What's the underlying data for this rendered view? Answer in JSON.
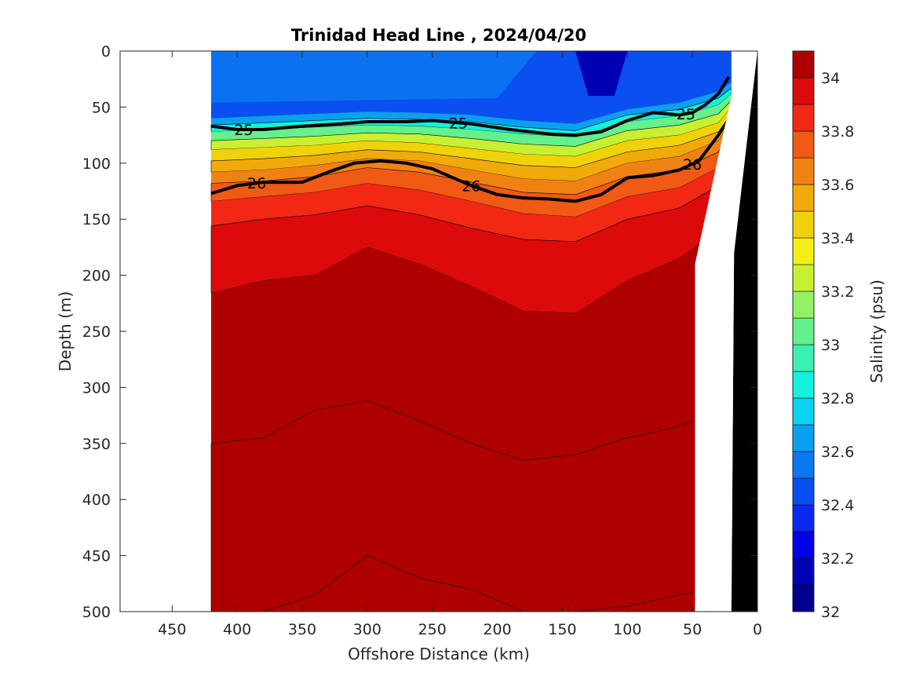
{
  "chart_data": {
    "type": "heatmap",
    "title": "Trinidad Head Line , 2024/04/20",
    "xlabel": "Offshore Distance (km)",
    "ylabel": "Depth (m)",
    "xlim": [
      490,
      0
    ],
    "ylim": [
      0,
      500
    ],
    "x_reversed": true,
    "y_reversed": true,
    "x_ticks": [
      450,
      400,
      350,
      300,
      250,
      200,
      150,
      100,
      50,
      0
    ],
    "y_ticks": [
      0,
      50,
      100,
      150,
      200,
      250,
      300,
      350,
      400,
      450,
      500
    ],
    "data_extent_km": [
      420,
      20
    ],
    "colorbar": {
      "label": "Salinity (psu)",
      "range": [
        32,
        34.1
      ],
      "ticks": [
        32,
        32.2,
        32.4,
        32.6,
        32.8,
        33,
        33.2,
        33.4,
        33.6,
        33.8,
        34
      ],
      "levels": [
        32.0,
        32.1,
        32.2,
        32.3,
        32.4,
        32.5,
        32.6,
        32.7,
        32.8,
        32.9,
        33.0,
        33.1,
        33.2,
        33.3,
        33.4,
        33.5,
        33.6,
        33.7,
        33.8,
        33.9,
        34.0
      ],
      "colors": [
        "#00008c",
        "#0000b4",
        "#0000e6",
        "#0a28f0",
        "#0a50f0",
        "#0a78f0",
        "#0aa0f0",
        "#0ad2f0",
        "#14f0dc",
        "#3cf0b4",
        "#64f08c",
        "#96f064",
        "#c8f032",
        "#f0f014",
        "#f0d20a",
        "#f0aa0a",
        "#f08214",
        "#f05a14",
        "#f02814",
        "#dc0a0a",
        "#af0000"
      ]
    },
    "salinity_bands": [
      {
        "name": "surface",
        "x": [
          420,
          380,
          340,
          300,
          260,
          220,
          180,
          140,
          100,
          60,
          30,
          20
        ],
        "depth": [
          60,
          58,
          56,
          54,
          55,
          57,
          62,
          65,
          52,
          46,
          36,
          28
        ],
        "value": 32.4
      },
      {
        "band": 1,
        "value": 32.6,
        "depth": [
          66,
          64,
          62,
          60,
          61,
          63,
          68,
          71,
          57,
          52,
          42,
          33
        ]
      },
      {
        "band": 2,
        "value": 32.8,
        "depth": [
          72,
          70,
          68,
          66,
          67,
          70,
          74,
          77,
          63,
          58,
          48,
          38
        ]
      },
      {
        "band": 3,
        "value": 33.0,
        "depth": [
          80,
          78,
          76,
          73,
          74,
          78,
          83,
          85,
          71,
          66,
          56,
          44
        ]
      },
      {
        "band": 4,
        "value": 33.2,
        "depth": [
          88,
          86,
          84,
          80,
          82,
          87,
          92,
          94,
          80,
          75,
          64,
          50
        ]
      },
      {
        "band": 5,
        "value": 33.4,
        "depth": [
          98,
          96,
          93,
          88,
          90,
          96,
          102,
          104,
          90,
          84,
          72,
          56
        ]
      },
      {
        "band": 6,
        "value": 33.5,
        "depth": [
          108,
          106,
          102,
          96,
          98,
          106,
          114,
          116,
          100,
          94,
          80,
          62
        ]
      },
      {
        "band": 7,
        "value": 33.6,
        "depth": [
          118,
          116,
          112,
          104,
          108,
          117,
          126,
          128,
          112,
          106,
          90,
          70
        ]
      },
      {
        "band": 8,
        "value": 33.7,
        "depth": [
          134,
          130,
          126,
          118,
          124,
          134,
          145,
          148,
          130,
          122,
          104,
          82
        ]
      },
      {
        "band": 9,
        "value": 33.8,
        "depth": [
          156,
          150,
          146,
          138,
          146,
          158,
          168,
          170,
          150,
          140,
          120,
          95
        ]
      },
      {
        "band": 10,
        "value": 33.9,
        "depth": [
          216,
          205,
          200,
          175,
          190,
          210,
          232,
          234,
          205,
          185,
          160,
          135
        ]
      },
      {
        "band": 11,
        "value": 34.0,
        "depth": [
          350,
          345,
          320,
          312,
          330,
          350,
          365,
          360,
          345,
          335,
          320,
          300
        ]
      },
      {
        "band": 12,
        "value": 34.1,
        "depth": [
          500,
          500,
          485,
          450,
          470,
          480,
          500,
          500,
          495,
          485,
          480,
          470
        ]
      }
    ],
    "density_contours": [
      {
        "label": "25",
        "x": [
          420,
          400,
          380,
          350,
          320,
          300,
          270,
          250,
          220,
          190,
          160,
          140,
          120,
          100,
          80,
          60,
          50,
          40,
          30,
          22
        ],
        "depth": [
          67,
          70,
          70,
          67,
          65,
          63,
          63,
          62,
          65,
          70,
          74,
          75,
          72,
          62,
          55,
          57,
          55,
          48,
          38,
          23
        ]
      },
      {
        "label": "26",
        "x": [
          420,
          400,
          380,
          350,
          330,
          310,
          290,
          270,
          250,
          220,
          200,
          180,
          160,
          140,
          120,
          100,
          80,
          60,
          45,
          30,
          20
        ],
        "depth": [
          127,
          120,
          117,
          117,
          108,
          100,
          98,
          100,
          105,
          120,
          128,
          131,
          132,
          134,
          128,
          113,
          111,
          106,
          98,
          75,
          57
        ]
      }
    ],
    "bathymetry_depth": [
      [
        0,
        0
      ],
      [
        10,
        100
      ],
      [
        18,
        180
      ],
      [
        20,
        500
      ]
    ]
  }
}
